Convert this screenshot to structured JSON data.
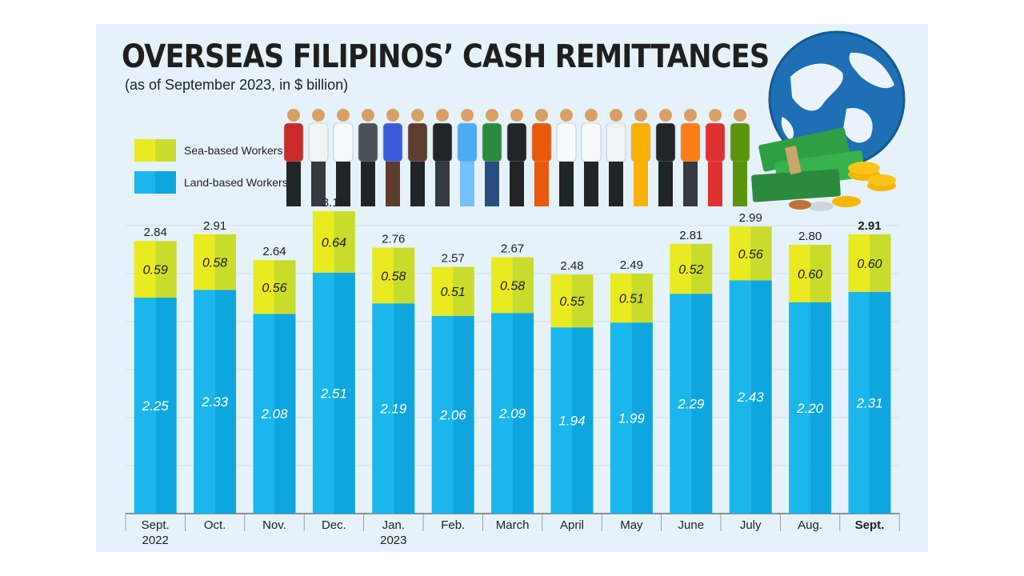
{
  "title": "OVERSEAS FILIPINOS’ CASH REMITTANCES",
  "subtitle": "(as of September 2023, in $ billion)",
  "legend": [
    {
      "label": "Sea-based Workers",
      "colors": [
        "#e9ea1f",
        "#c9dc2c"
      ]
    },
    {
      "label": "Land-based Workers",
      "colors": [
        "#1ab6ec",
        "#0fa6e0"
      ]
    }
  ],
  "colors": {
    "panel_bg": "#e6f2fa",
    "sea_light": "#e9ea1f",
    "sea_dark": "#c9dc2c",
    "land_light": "#1ab6ec",
    "land_dark": "#0fa6e0",
    "text_dark": "#1f1f1f"
  },
  "icons": [
    "workers-illustration",
    "globe-icon",
    "money-stack-icon"
  ],
  "chart_data": {
    "type": "bar",
    "stacked": true,
    "categories": [
      "Sept.\n2022",
      "Oct.",
      "Nov.",
      "Dec.",
      "Jan.\n2023",
      "Feb.",
      "March",
      "April",
      "May",
      "June",
      "July",
      "Aug.",
      "Sept."
    ],
    "series": [
      {
        "name": "Land-based Workers",
        "values": [
          2.25,
          2.33,
          2.08,
          2.51,
          2.19,
          2.06,
          2.09,
          1.94,
          1.99,
          2.29,
          2.43,
          2.2,
          2.31
        ],
        "labels": [
          "2.25",
          "2.33",
          "2.08",
          "2.51",
          "2.19",
          "2.06",
          "2.09",
          "1.94",
          "1.99",
          "2.29",
          "2.43",
          "2.20",
          "2.31"
        ]
      },
      {
        "name": "Sea-based Workers",
        "values": [
          0.59,
          0.58,
          0.56,
          0.64,
          0.58,
          0.51,
          0.58,
          0.55,
          0.51,
          0.52,
          0.56,
          0.6,
          0.6
        ],
        "labels": [
          "0.59",
          "0.58",
          "0.56",
          "0.64",
          "0.58",
          "0.51",
          "0.58",
          "0.55",
          "0.51",
          "0.52",
          "0.56",
          "0.60",
          "0.60"
        ]
      }
    ],
    "totals": [
      "2.84",
      "2.91",
      "2.64",
      "3.16",
      "2.76",
      "2.57",
      "2.67",
      "2.48",
      "2.49",
      "2.81",
      "2.99",
      "2.80",
      "2.91"
    ],
    "ylim": [
      0,
      3.5
    ],
    "grid": true,
    "legend_position": "top-left",
    "highlight_last": true
  }
}
